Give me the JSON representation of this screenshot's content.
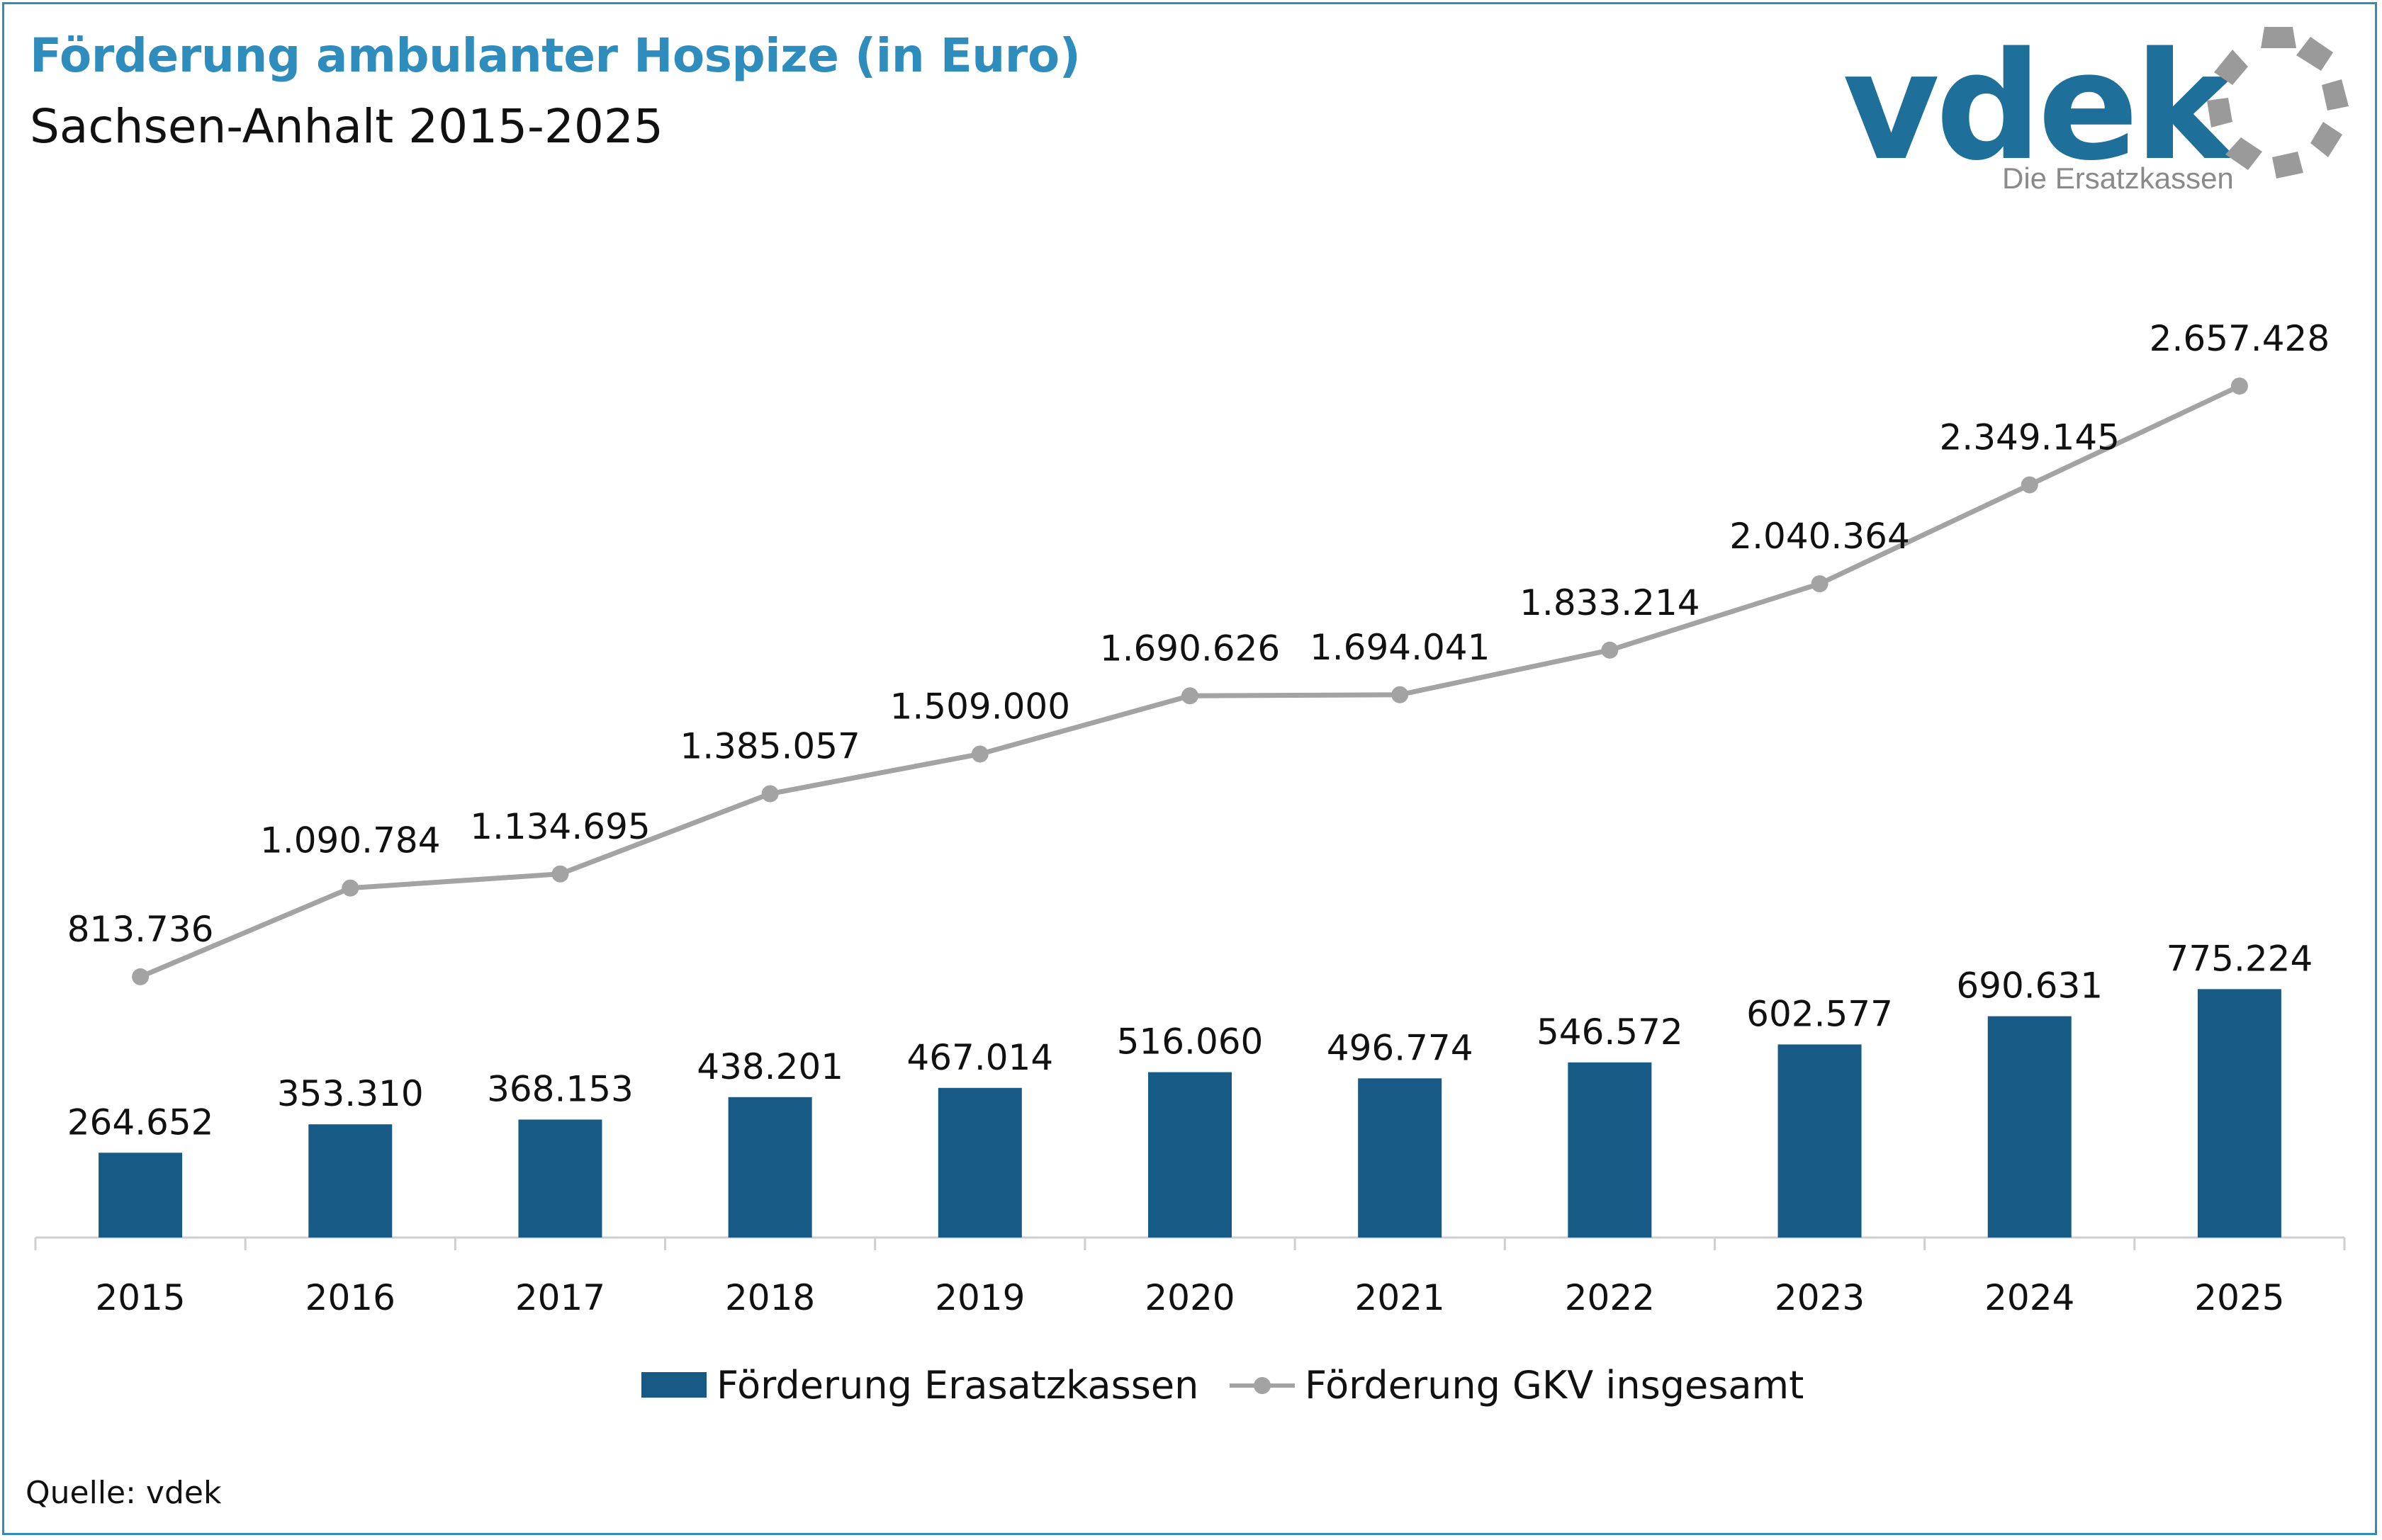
{
  "header": {
    "title": "Förderung ambulanter Hospize (in Euro)",
    "subtitle": "Sachsen-Anhalt 2015-2025"
  },
  "logo": {
    "wordmark": "vdek",
    "tagline": "Die Ersatzkassen"
  },
  "source": "Quelle: vdek",
  "colors": {
    "bar": "#175a85",
    "line": "#a3a3a3",
    "title": "#2f8dbd",
    "logo": "#1e6f9a"
  },
  "chart_data": {
    "type": "bar",
    "title": "Förderung ambulanter Hospize (in Euro)",
    "subtitle": "Sachsen-Anhalt 2015-2025",
    "categories": [
      "2015",
      "2016",
      "2017",
      "2018",
      "2019",
      "2020",
      "2021",
      "2022",
      "2023",
      "2024",
      "2025"
    ],
    "series": [
      {
        "name": "Förderung Erasatzkassen",
        "type": "bar",
        "values": [
          264652,
          353310,
          368153,
          438201,
          467014,
          516060,
          496774,
          546572,
          602577,
          690631,
          775224
        ],
        "labels": [
          "264.652",
          "353.310",
          "368.153",
          "438.201",
          "467.014",
          "516.060",
          "496.774",
          "546.572",
          "602.577",
          "690.631",
          "775.224"
        ]
      },
      {
        "name": "Förderung GKV insgesamt",
        "type": "line",
        "values": [
          813736,
          1090784,
          1134695,
          1385057,
          1509000,
          1690626,
          1694041,
          1833214,
          2040364,
          2349145,
          2657428
        ],
        "labels": [
          "813.736",
          "1.090.784",
          "1.134.695",
          "1.385.057",
          "1.509.000",
          "1.690.626",
          "1.694.041",
          "1.833.214",
          "2.040.364",
          "2.349.145",
          "2.657.428"
        ]
      }
    ],
    "xlabel": "",
    "ylabel": "",
    "ylim": [
      0,
      3000000
    ],
    "grid": false,
    "legend": "bottom"
  }
}
